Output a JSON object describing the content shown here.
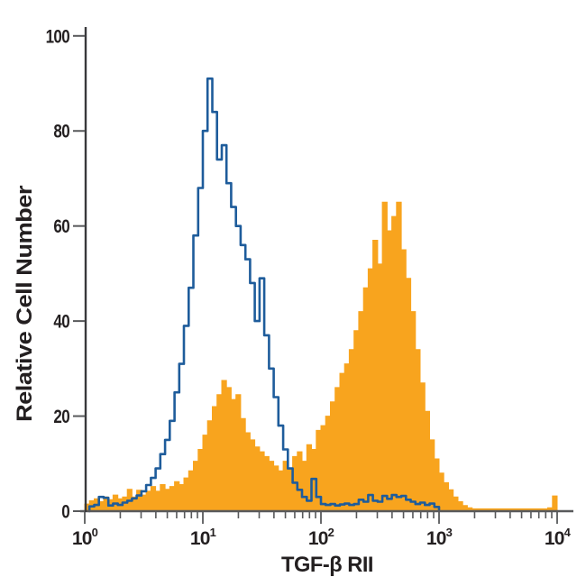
{
  "chart_data": {
    "type": "histogram-overlay",
    "title": "",
    "xlabel": "TGF-β RII",
    "ylabel": "Relative Cell Number",
    "x_scale": "log10",
    "xlim_log": [
      0,
      4
    ],
    "ylim": [
      0,
      100
    ],
    "y_ticks": [
      0,
      20,
      40,
      60,
      80,
      100
    ],
    "x_tick_base": "10",
    "x_tick_exponents": [
      "0",
      "1",
      "2",
      "3",
      "4"
    ],
    "grid": false,
    "legend": "none",
    "bin_width_log": 0.04,
    "series": [
      {
        "name": "orange-filled-histogram",
        "style": "filled",
        "color": "#F8A41E",
        "start_log": 0.0,
        "peaks": [
          {
            "log_x": 1.18,
            "value": 27.5
          },
          {
            "log_x": 2.55,
            "value": 65
          },
          {
            "log_x": 3.98,
            "value": 3.2
          }
        ],
        "values": [
          1.5,
          2.2,
          2.6,
          2.0,
          3.0,
          2.4,
          3.4,
          2.6,
          3.0,
          4.6,
          3.0,
          4.4,
          3.4,
          4.2,
          5.2,
          4.2,
          5.6,
          4.6,
          5.2,
          6.2,
          5.6,
          7.0,
          8.5,
          10.5,
          13,
          16,
          19,
          22,
          24.5,
          27.5,
          26,
          23.5,
          24.5,
          19.5,
          16.5,
          15,
          13.5,
          12.5,
          11.5,
          10.5,
          9.5,
          8.5,
          10.5,
          9.0,
          11.5,
          12.5,
          10.5,
          14,
          13,
          17,
          18,
          20,
          23,
          26,
          29,
          31,
          34,
          38,
          42,
          47,
          51,
          57,
          52,
          65,
          59,
          62,
          65,
          55,
          49,
          42,
          34,
          27,
          21,
          15,
          11,
          8,
          6,
          4.5,
          3,
          2,
          1.2,
          0.7,
          0.5,
          0.5,
          0.5,
          0.5,
          0.5,
          0.5,
          0.5,
          0.5,
          0.5,
          0.5,
          0.5,
          0.5,
          0.5,
          0.5,
          0.5,
          0.5,
          0.7,
          3.2
        ]
      },
      {
        "name": "blue-open-histogram",
        "style": "open",
        "color": "#1E5C9B",
        "start_log": 0.04,
        "peaks": [
          {
            "log_x": 1.06,
            "value": 91
          }
        ],
        "values": [
          1.0,
          1.3,
          3.0,
          2.8,
          1.2,
          1.6,
          1.3,
          1.8,
          2.2,
          2.7,
          3.3,
          4.2,
          5.5,
          7.0,
          9.0,
          12,
          15,
          19,
          25,
          31,
          39,
          47,
          58,
          68,
          80,
          91,
          84,
          74,
          77,
          69,
          64,
          60,
          56,
          53,
          48,
          40,
          49,
          37,
          30,
          24,
          18,
          13,
          9.0,
          6.0,
          4.5,
          3.0,
          2.2,
          6.8,
          3.0,
          1.5,
          1.3,
          1.5,
          1.2,
          1.4,
          1.6,
          1.3,
          1.5,
          2.4,
          2.0,
          3.4,
          2.2,
          2.0,
          3.2,
          2.6,
          3.4,
          3.0,
          3.2,
          2.4,
          2.0,
          1.5,
          1.8,
          1.3,
          1.6,
          0.9
        ]
      }
    ]
  },
  "colors": {
    "background": "#FFFFFF",
    "x_axis": "#58595B",
    "y_axis": "#39393B",
    "tick": "#58595B",
    "label_text": "#231F20",
    "series_orange": "#F8A41E",
    "series_blue": "#1E5C9B"
  }
}
